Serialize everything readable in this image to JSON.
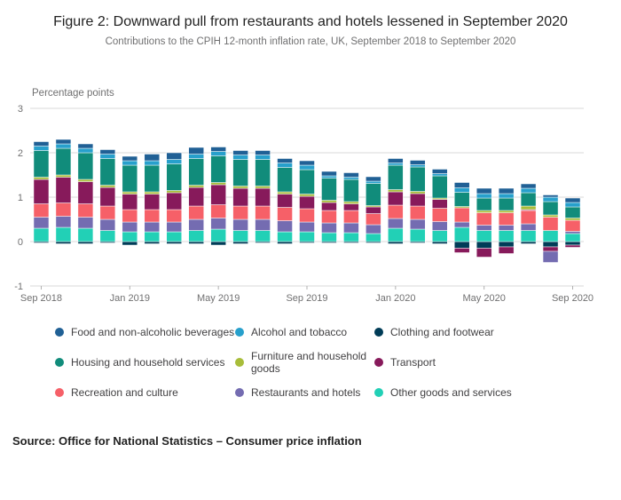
{
  "header": {
    "title": "Figure 2: Downward pull from restaurants and hotels lessened in September 2020",
    "subtitle": "Contributions to the CPIH 12-month inflation rate, UK, September 2018 to September 2020"
  },
  "source": {
    "text": "Source: Office for National Statistics – Consumer price inflation"
  },
  "chart_data": {
    "type": "bar",
    "stacked": true,
    "title": "Figure 2: Downward pull from restaurants and hotels lessened in September 2020",
    "axis_label": "Percentage points",
    "ylim": [
      -1,
      3
    ],
    "yticks": [
      3,
      2,
      1,
      0,
      -1
    ],
    "grid": true,
    "legend_position": "bottom",
    "categories": [
      "Sep 2018",
      "Oct 2018",
      "Nov 2018",
      "Dec 2018",
      "Jan 2019",
      "Feb 2019",
      "Mar 2019",
      "Apr 2019",
      "May 2019",
      "Jun 2019",
      "Jul 2019",
      "Aug 2019",
      "Sep 2019",
      "Oct 2019",
      "Nov 2019",
      "Dec 2019",
      "Jan 2020",
      "Feb 2020",
      "Mar 2020",
      "Apr 2020",
      "May 2020",
      "Jun 2020",
      "Jul 2020",
      "Aug 2020",
      "Sep 2020"
    ],
    "x_ticks": [
      {
        "index": 0,
        "label": "Sep 2018"
      },
      {
        "index": 4,
        "label": "Jan 2019"
      },
      {
        "index": 8,
        "label": "May 2019"
      },
      {
        "index": 12,
        "label": "Sep 2019"
      },
      {
        "index": 16,
        "label": "Jan 2020"
      },
      {
        "index": 20,
        "label": "May 2020"
      },
      {
        "index": 24,
        "label": "Sep 2020"
      }
    ],
    "series": [
      {
        "name": "Food and non-alcoholic beverages",
        "color": "#206095",
        "values": [
          0.1,
          0.1,
          0.1,
          0.1,
          0.1,
          0.15,
          0.15,
          0.15,
          0.1,
          0.1,
          0.1,
          0.1,
          0.1,
          0.1,
          0.1,
          0.1,
          0.1,
          0.1,
          0.1,
          0.12,
          0.12,
          0.12,
          0.1,
          0.05,
          0.1
        ]
      },
      {
        "name": "Alcohol and tobacco",
        "color": "#27A0CC",
        "values": [
          0.1,
          0.1,
          0.1,
          0.1,
          0.1,
          0.1,
          0.1,
          0.1,
          0.1,
          0.1,
          0.1,
          0.1,
          0.1,
          0.05,
          0.05,
          0.05,
          0.05,
          0.05,
          0.05,
          0.1,
          0.1,
          0.1,
          0.1,
          0.1,
          0.1
        ]
      },
      {
        "name": "Clothing and footwear",
        "color": "#003C57",
        "values": [
          -0.03,
          -0.05,
          -0.05,
          -0.03,
          -0.08,
          -0.05,
          -0.05,
          -0.05,
          -0.08,
          -0.05,
          -0.03,
          -0.05,
          -0.03,
          -0.03,
          -0.03,
          -0.03,
          -0.05,
          -0.03,
          -0.05,
          -0.15,
          -0.15,
          -0.12,
          -0.05,
          -0.12,
          -0.08
        ]
      },
      {
        "name": "Housing and household services",
        "color": "#118C7B",
        "values": [
          0.6,
          0.6,
          0.6,
          0.6,
          0.6,
          0.6,
          0.6,
          0.6,
          0.6,
          0.6,
          0.6,
          0.55,
          0.55,
          0.5,
          0.5,
          0.5,
          0.55,
          0.55,
          0.5,
          0.32,
          0.28,
          0.28,
          0.3,
          0.3,
          0.25
        ]
      },
      {
        "name": "Furniture and household goods",
        "color": "#A8BD3A",
        "values": [
          0.05,
          0.05,
          0.05,
          0.05,
          0.05,
          0.05,
          0.05,
          0.05,
          0.05,
          0.05,
          0.05,
          0.05,
          0.05,
          0.05,
          0.05,
          0.03,
          0.05,
          0.05,
          0.03,
          0.03,
          0.05,
          0.05,
          0.08,
          0.05,
          0.05
        ]
      },
      {
        "name": "Transport",
        "color": "#871A5B",
        "values": [
          0.55,
          0.58,
          0.5,
          0.42,
          0.35,
          0.35,
          0.38,
          0.42,
          0.45,
          0.4,
          0.4,
          0.3,
          0.28,
          0.18,
          0.15,
          0.15,
          0.3,
          0.28,
          0.2,
          -0.1,
          -0.2,
          -0.15,
          0.02,
          -0.1,
          -0.05
        ]
      },
      {
        "name": "Recreation and culture",
        "color": "#F66068",
        "values": [
          0.3,
          0.3,
          0.3,
          0.3,
          0.28,
          0.28,
          0.28,
          0.3,
          0.3,
          0.3,
          0.3,
          0.3,
          0.3,
          0.28,
          0.28,
          0.25,
          0.3,
          0.3,
          0.3,
          0.32,
          0.28,
          0.28,
          0.3,
          0.3,
          0.25
        ]
      },
      {
        "name": "Restaurants and hotels",
        "color": "#746CB1",
        "values": [
          0.25,
          0.25,
          0.25,
          0.25,
          0.22,
          0.22,
          0.22,
          0.25,
          0.25,
          0.25,
          0.25,
          0.25,
          0.22,
          0.22,
          0.22,
          0.2,
          0.22,
          0.22,
          0.2,
          0.12,
          0.12,
          0.12,
          0.15,
          -0.25,
          0.05
        ]
      },
      {
        "name": "Other goods and services",
        "color": "#22D0B6",
        "values": [
          0.3,
          0.32,
          0.3,
          0.25,
          0.22,
          0.22,
          0.22,
          0.25,
          0.28,
          0.25,
          0.25,
          0.22,
          0.22,
          0.2,
          0.2,
          0.18,
          0.3,
          0.28,
          0.25,
          0.32,
          0.25,
          0.25,
          0.25,
          0.25,
          0.18
        ]
      }
    ],
    "colors": {
      "grid": "#d9d9d9",
      "tick": "#b0b0b0",
      "axis_text": "#707071"
    }
  }
}
